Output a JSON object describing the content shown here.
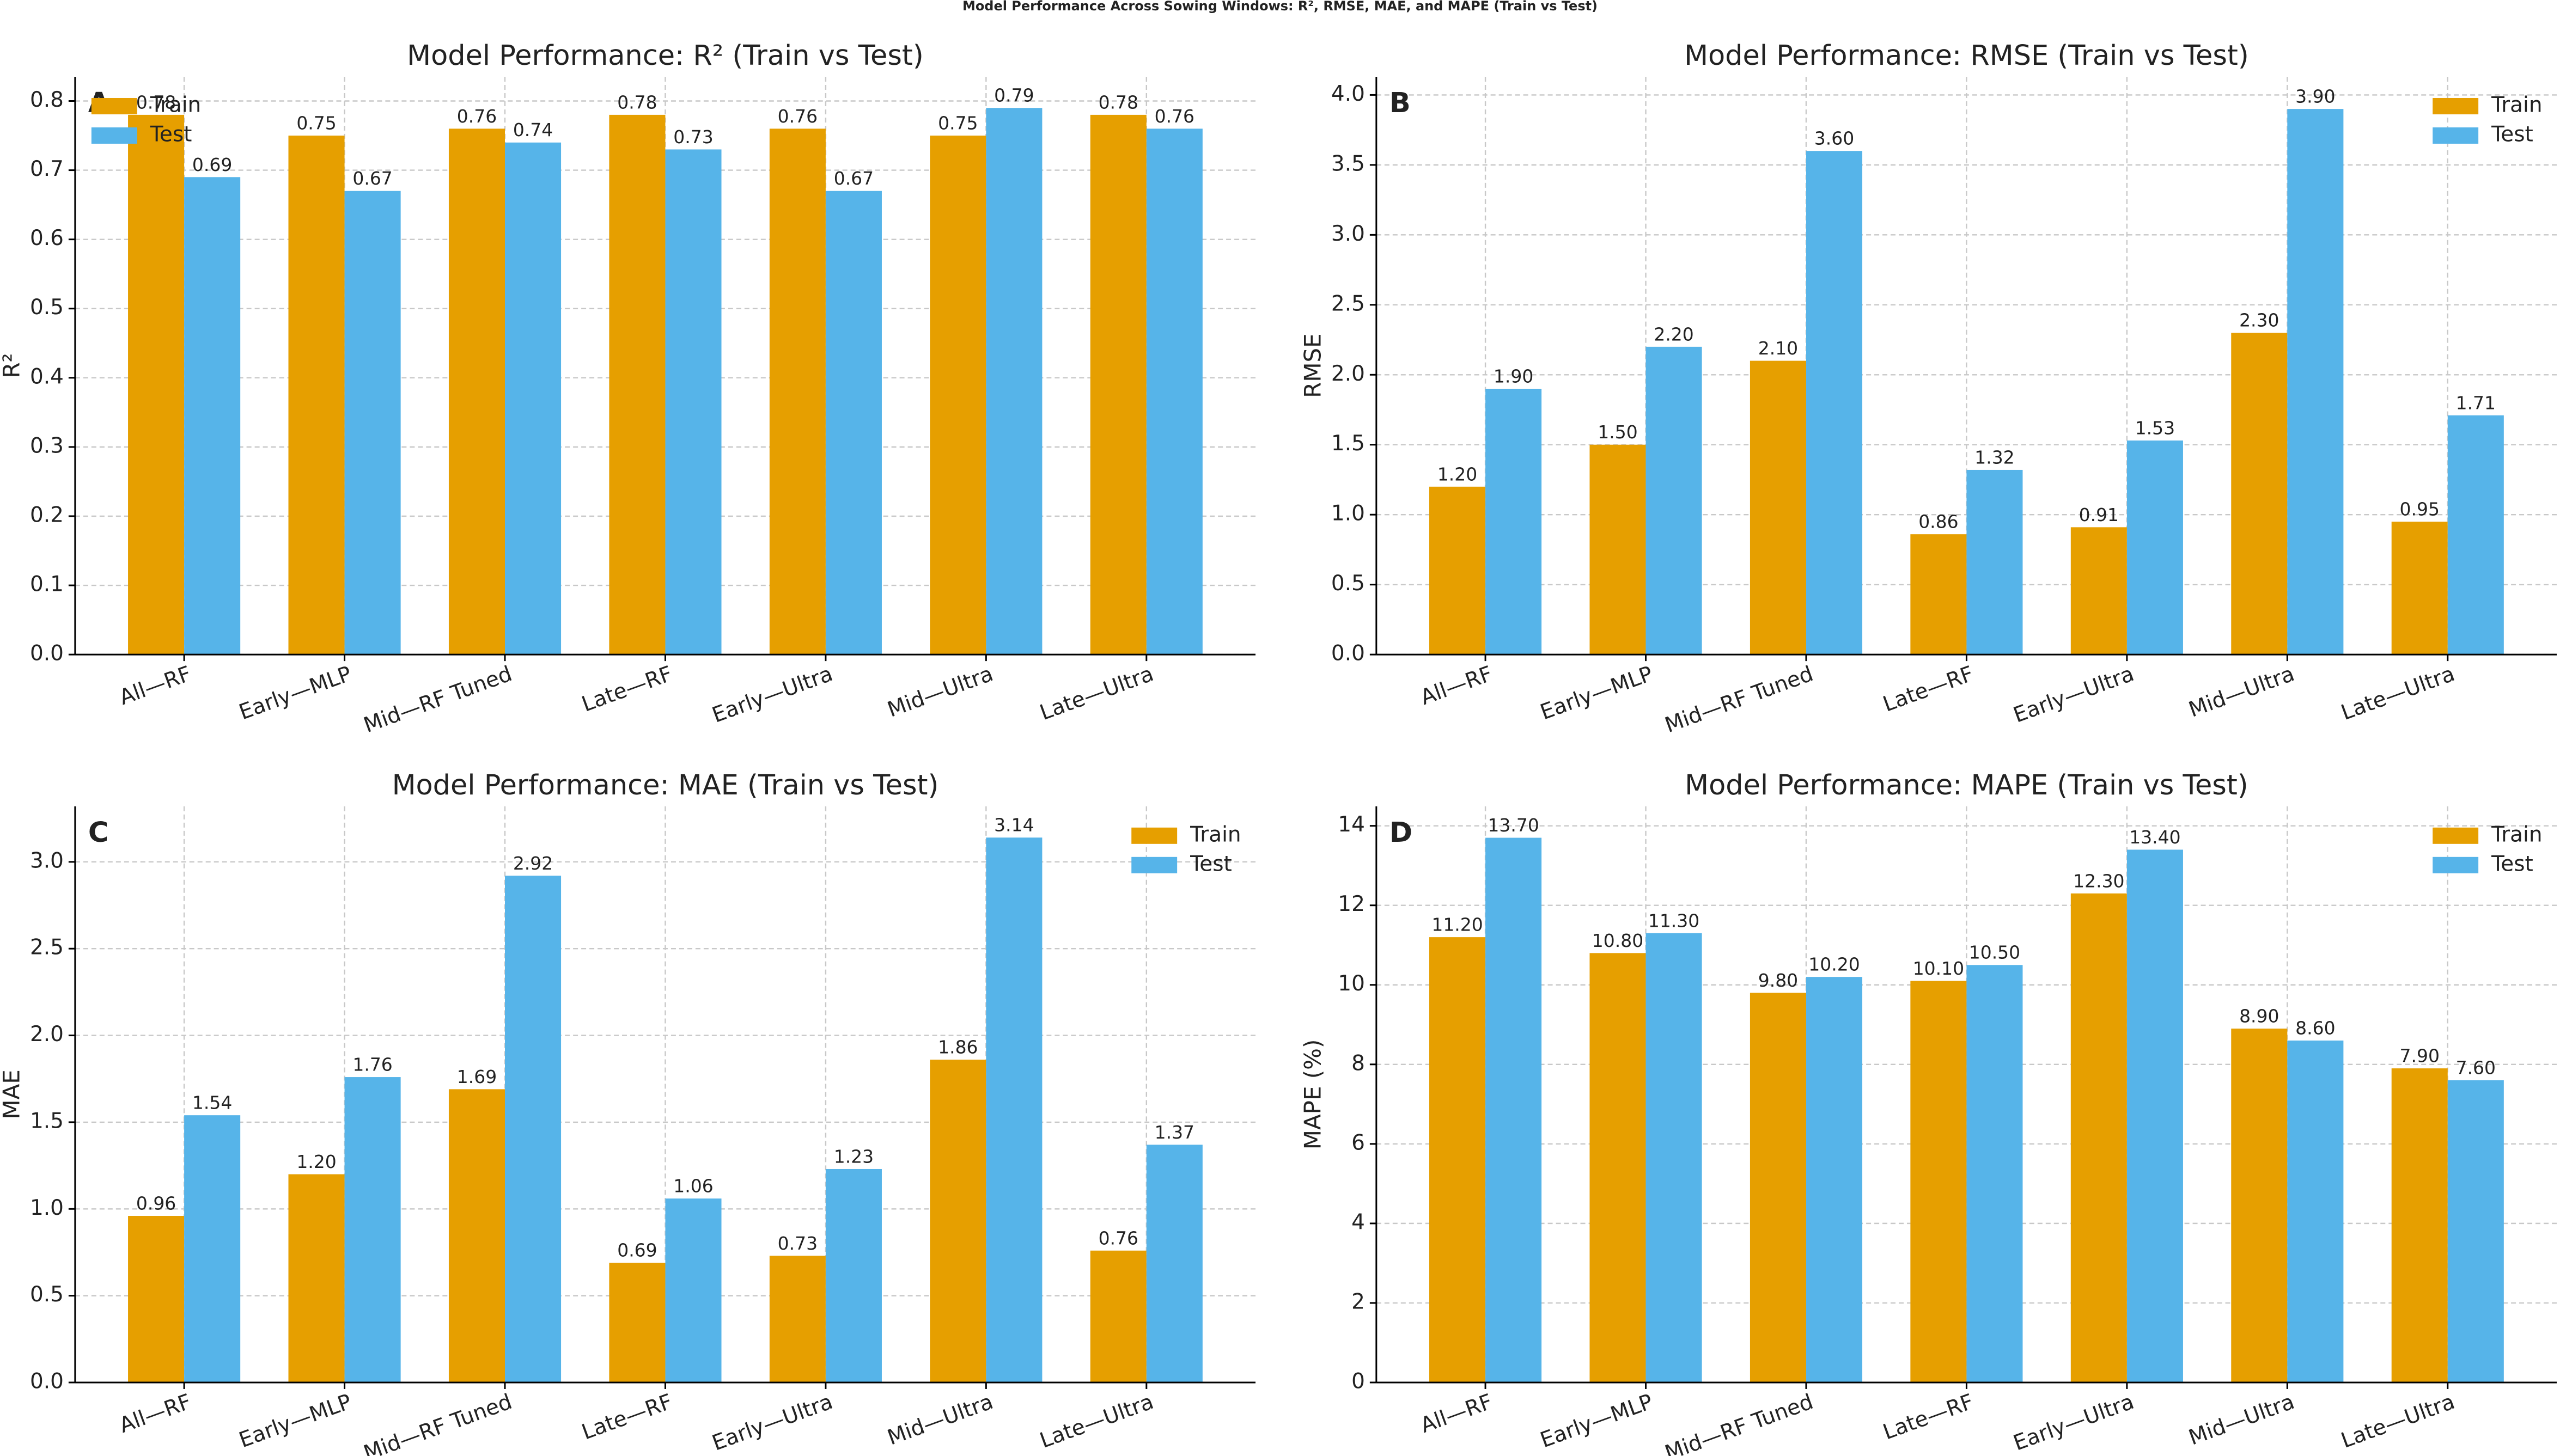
{
  "title": "Model Performance Across Sowing Windows: R², RMSE, MAE, and MAPE (Train vs Test)",
  "chart_data": [
    {
      "type": "bar",
      "title": "Model Performance: R² (Train vs Test)",
      "panel": "A",
      "ylabel": "R²",
      "categories": [
        "All—RF",
        "Early—MLP",
        "Mid—RF Tuned",
        "Late—RF",
        "Early—Ultra",
        "Mid—Ultra",
        "Late—Ultra"
      ],
      "series": [
        {
          "name": "Train",
          "color": "#E69F00",
          "values": [
            0.78,
            0.75,
            0.76,
            0.78,
            0.76,
            0.75,
            0.78
          ],
          "value_labels": [
            "0.78",
            "0.75",
            "0.76",
            "0.78",
            "0.76",
            "0.75",
            "0.78"
          ]
        },
        {
          "name": "Test",
          "color": "#56B4E9",
          "values": [
            0.69,
            0.67,
            0.74,
            0.73,
            0.67,
            0.79,
            0.76
          ],
          "value_labels": [
            "0.69",
            "0.67",
            "0.74",
            "0.73",
            "0.67",
            "0.79",
            "0.76"
          ]
        }
      ],
      "ylim": [
        0,
        0.835
      ],
      "yticks": [
        {
          "value": 0,
          "label": "0.0"
        },
        0.1,
        0.2,
        0.3,
        0.4,
        0.5,
        0.6,
        0.7,
        0.8
      ],
      "grid": true,
      "legend": "upper left"
    },
    {
      "type": "bar",
      "title": "Model Performance: RMSE (Train vs Test)",
      "panel": "B",
      "ylabel": "RMSE",
      "categories": [
        "All—RF",
        "Early—MLP",
        "Mid—RF Tuned",
        "Late—RF",
        "Early—Ultra",
        "Mid—Ultra",
        "Late—Ultra"
      ],
      "series": [
        {
          "name": "Train",
          "color": "#E69F00",
          "values": [
            1.2,
            1.5,
            2.1,
            0.86,
            0.91,
            2.3,
            0.95
          ],
          "value_labels": [
            "1.20",
            "1.50",
            "2.10",
            "0.86",
            "0.91",
            "2.30",
            "0.95"
          ]
        },
        {
          "name": "Test",
          "color": "#56B4E9",
          "values": [
            1.9,
            2.2,
            3.6,
            1.32,
            1.53,
            3.9,
            1.71
          ],
          "value_labels": [
            "1.90",
            "2.20",
            "3.60",
            "1.32",
            "1.53",
            "3.90",
            "1.71"
          ]
        }
      ],
      "ylim": [
        0,
        4.13
      ],
      "yticks": [
        {
          "value": 0,
          "label": "0.0"
        },
        0.5,
        {
          "value": 1,
          "label": "1.0"
        },
        1.5,
        {
          "value": 2,
          "label": "2.0"
        },
        2.5,
        {
          "value": 3,
          "label": "3.0"
        },
        3.5,
        {
          "value": 4,
          "label": "4.0"
        }
      ],
      "grid": true,
      "legend": "upper right"
    },
    {
      "type": "bar",
      "title": "Model Performance: MAE (Train vs Test)",
      "panel": "C",
      "ylabel": "MAE",
      "categories": [
        "All—RF",
        "Early—MLP",
        "Mid—RF Tuned",
        "Late—RF",
        "Early—Ultra",
        "Mid—Ultra",
        "Late—Ultra"
      ],
      "series": [
        {
          "name": "Train",
          "color": "#E69F00",
          "values": [
            0.96,
            1.2,
            1.69,
            0.69,
            0.73,
            1.86,
            0.76
          ],
          "value_labels": [
            "0.96",
            "1.20",
            "1.69",
            "0.69",
            "0.73",
            "1.86",
            "0.76"
          ]
        },
        {
          "name": "Test",
          "color": "#56B4E9",
          "values": [
            1.54,
            1.76,
            2.92,
            1.06,
            1.23,
            3.14,
            1.37
          ],
          "value_labels": [
            "1.54",
            "1.76",
            "2.92",
            "1.06",
            "1.23",
            "3.14",
            "1.37"
          ]
        }
      ],
      "ylim": [
        0,
        3.32
      ],
      "yticks": [
        {
          "value": 0,
          "label": "0.0"
        },
        0.5,
        {
          "value": 1,
          "label": "1.0"
        },
        1.5,
        {
          "value": 2,
          "label": "2.0"
        },
        2.5,
        {
          "value": 3,
          "label": "3.0"
        }
      ],
      "grid": true,
      "legend": "upper right"
    },
    {
      "type": "bar",
      "title": "Model Performance: MAPE (Train vs Test)",
      "panel": "D",
      "ylabel": "MAPE (%)",
      "categories": [
        "All—RF",
        "Early—MLP",
        "Mid—RF Tuned",
        "Late—RF",
        "Early—Ultra",
        "Mid—Ultra",
        "Late—Ultra"
      ],
      "series": [
        {
          "name": "Train",
          "color": "#E69F00",
          "values": [
            11.2,
            10.8,
            9.8,
            10.1,
            12.3,
            8.9,
            7.9
          ],
          "value_labels": [
            "11.20",
            "10.80",
            "9.80",
            "10.10",
            "12.30",
            "8.90",
            "7.90"
          ]
        },
        {
          "name": "Test",
          "color": "#56B4E9",
          "values": [
            13.7,
            11.3,
            10.2,
            10.5,
            13.4,
            8.6,
            7.6
          ],
          "value_labels": [
            "13.70",
            "11.30",
            "10.20",
            "10.50",
            "13.40",
            "8.60",
            "7.60"
          ]
        }
      ],
      "ylim": [
        0,
        14.49
      ],
      "yticks": [
        0,
        2,
        4,
        6,
        8,
        10,
        12,
        14
      ],
      "grid": true,
      "legend": "upper right"
    }
  ]
}
